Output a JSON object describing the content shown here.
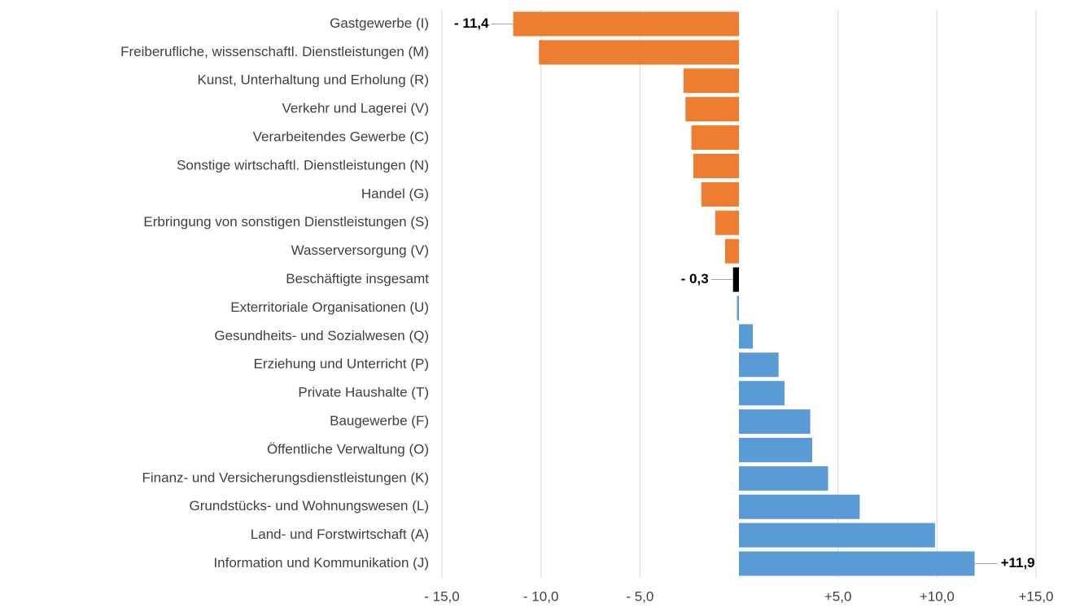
{
  "chart_data": {
    "type": "hbar",
    "categories": [
      "Gastgewerbe (I)",
      "Freiberufliche, wissenschaftl. Dienstleistungen (M)",
      "Kunst, Unterhaltung und Erholung (R)",
      "Verkehr und Lagerei (V)",
      "Verarbeitendes Gewerbe (C)",
      "Sonstige wirtschaftl. Dienstleistungen (N)",
      "Handel (G)",
      "Erbringung von sonstigen Dienstleistungen (S)",
      "Wasserversorgung (V)",
      "Beschäftigte insgesamt",
      "Exterritoriale Organisationen (U)",
      "Gesundheits- und Sozialwesen (Q)",
      "Erziehung und Unterricht (P)",
      "Private Haushalte (T)",
      "Baugewerbe (F)",
      "Öffentliche Verwaltung (O)",
      "Finanz- und Versicherungsdienstleistungen (K)",
      "Grundstücks- und Wohnungswesen (L)",
      "Land- und Forstwirtschaft (A)",
      "Information und Kommunikation (J)"
    ],
    "values": [
      -11.4,
      -10.1,
      -2.8,
      -2.7,
      -2.4,
      -2.3,
      -1.9,
      -1.2,
      -0.7,
      -0.3,
      -0.1,
      0.7,
      2.0,
      2.3,
      3.6,
      3.7,
      4.5,
      6.1,
      9.9,
      11.9
    ],
    "value_labels": [
      "- 11,4",
      null,
      null,
      null,
      null,
      null,
      null,
      null,
      null,
      "- 0,3",
      null,
      null,
      null,
      null,
      null,
      null,
      null,
      null,
      null,
      "+11,9"
    ],
    "colors": [
      "#ed7d31",
      "#ed7d31",
      "#ed7d31",
      "#ed7d31",
      "#ed7d31",
      "#ed7d31",
      "#ed7d31",
      "#ed7d31",
      "#ed7d31",
      "#000000",
      "#5b9bd5",
      "#5b9bd5",
      "#5b9bd5",
      "#5b9bd5",
      "#5b9bd5",
      "#5b9bd5",
      "#5b9bd5",
      "#5b9bd5",
      "#5b9bd5",
      "#5b9bd5"
    ],
    "xlim": [
      -15,
      15
    ],
    "xticks": [
      {
        "value": -15,
        "label": "- 15,0"
      },
      {
        "value": -10,
        "label": "- 10,0"
      },
      {
        "value": -5,
        "label": "- 5,0"
      },
      {
        "value": 5,
        "label": "+5,0"
      },
      {
        "value": 10,
        "label": "+10,0"
      },
      {
        "value": 15,
        "label": "+15,0"
      }
    ],
    "grid": true
  }
}
